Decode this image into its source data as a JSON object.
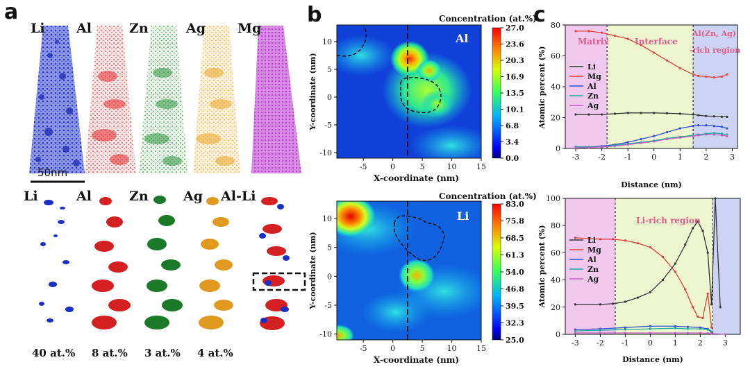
{
  "panel_a": {
    "letter": "a",
    "top_labels": [
      "Li",
      "Al",
      "Zn",
      "Ag",
      "Mg"
    ],
    "bottom_labels": [
      "Li",
      "Al",
      "Zn",
      "Ag",
      "Al-Li"
    ],
    "scale_bar": "50nm",
    "percentages": [
      "40 at.%",
      "8 at.%",
      "3 at.%",
      "4 at.%"
    ],
    "colors": {
      "li": "#2434c8",
      "al": "#e0282c",
      "zn": "#1f8a2e",
      "ag": "#e8a526",
      "mg": "#b43cc8"
    }
  },
  "panel_b": {
    "letter": "b",
    "top_map": {
      "element": "Al",
      "colorbar_title": "Concentration (at.%)",
      "colorbar_ticks": [
        "27.0",
        "23.6",
        "20.3",
        "16.9",
        "13.5",
        "10.1",
        "6.8",
        "3.4",
        "0.0"
      ],
      "xlabel": "X-coordinate (nm)",
      "ylabel": "Y-coordinate (nm)",
      "xticks": [
        "-5",
        "0",
        "5",
        "10",
        "15"
      ],
      "yticks": [
        "10",
        "5",
        "0",
        "-5",
        "-10"
      ]
    },
    "bottom_map": {
      "element": "Li",
      "colorbar_title": "Concentration (at.%)",
      "colorbar_ticks": [
        "83.0",
        "75.8",
        "68.5",
        "61.3",
        "54.0",
        "46.8",
        "39.5",
        "32.3",
        "25.0"
      ],
      "xlabel": "X-coordinate (nm)",
      "ylabel": "Y-coordinate (nm)",
      "xticks": [
        "-5",
        "0",
        "5",
        "10",
        "15"
      ],
      "yticks": [
        "10",
        "5",
        "0",
        "-5",
        "-10"
      ]
    }
  },
  "panel_c": {
    "letter": "c",
    "top_chart": {
      "type": "line",
      "xlabel": "Distance (nm)",
      "ylabel": "Atomic percent (%)",
      "xlim": [
        -3.4,
        3.2
      ],
      "ylim": [
        0,
        80
      ],
      "xticks": [
        "-3",
        "-2",
        "-1",
        "0",
        "1",
        "2",
        "3"
      ],
      "yticks": [
        "0",
        "20",
        "40",
        "60",
        "80"
      ],
      "region_labels": [
        "Matrix",
        "Interface",
        "Al(Zn, Ag)",
        "-rich region"
      ],
      "boundaries": [
        -1.8,
        1.5
      ],
      "legend": [
        "Li",
        "Mg",
        "Al",
        "Zn",
        "Ag"
      ],
      "series": [
        {
          "name": "Li",
          "x": [
            -3.0,
            -2.5,
            -2.0,
            -1.5,
            -1.0,
            -0.5,
            0.0,
            0.5,
            1.0,
            1.5,
            1.7,
            2.0,
            2.3,
            2.6,
            2.8
          ],
          "values": [
            22,
            22,
            22,
            22.5,
            23,
            23,
            23,
            22.8,
            22.5,
            22,
            21.5,
            21,
            20.8,
            20.5,
            20.5
          ]
        },
        {
          "name": "Mg",
          "x": [
            -3.0,
            -2.5,
            -2.0,
            -1.5,
            -1.0,
            -0.5,
            0.0,
            0.5,
            1.0,
            1.5,
            1.7,
            2.0,
            2.3,
            2.6,
            2.8
          ],
          "values": [
            76,
            76,
            75,
            73,
            71,
            67,
            62,
            57,
            52,
            48,
            47,
            46.5,
            46,
            46.5,
            48
          ]
        },
        {
          "name": "Al",
          "x": [
            -3.0,
            -2.5,
            -2.0,
            -1.5,
            -1.0,
            -0.5,
            0.0,
            0.5,
            1.0,
            1.5,
            1.7,
            2.0,
            2.3,
            2.6,
            2.8
          ],
          "values": [
            1,
            1,
            1.5,
            2.5,
            4,
            6,
            8,
            10.5,
            13,
            14.5,
            15,
            15,
            14.5,
            14,
            13
          ]
        },
        {
          "name": "Zn",
          "x": [
            -3.0,
            -2.5,
            -2.0,
            -1.5,
            -1.0,
            -0.5,
            0.0,
            0.5,
            1.0,
            1.5,
            1.7,
            2.0,
            2.3,
            2.6,
            2.8
          ],
          "values": [
            1,
            1,
            1,
            2,
            3,
            4,
            5,
            6.5,
            7.5,
            8.5,
            9,
            9.5,
            10,
            9.5,
            9
          ]
        },
        {
          "name": "Ag",
          "x": [
            -3.0,
            -2.5,
            -2.0,
            -1.5,
            -1.0,
            -0.5,
            0.0,
            0.5,
            1.0,
            1.5,
            1.7,
            2.0,
            2.3,
            2.6,
            2.8
          ],
          "values": [
            0.5,
            0.5,
            1,
            1.5,
            2.5,
            3.5,
            4.5,
            6,
            7,
            8,
            8.5,
            9,
            9,
            8.5,
            8
          ]
        }
      ]
    },
    "bottom_chart": {
      "type": "line",
      "xlabel": "Distance (nm)",
      "ylabel": "Atomic percent (%)",
      "xlim": [
        -3.4,
        3.6
      ],
      "ylim": [
        0,
        100
      ],
      "xticks": [
        "-3",
        "-2",
        "-1",
        "0",
        "1",
        "2",
        "3"
      ],
      "yticks": [
        "0",
        "20",
        "40",
        "60",
        "80",
        "100"
      ],
      "region_labels": [
        "Li-rich region"
      ],
      "boundaries": [
        -1.4,
        2.5
      ],
      "legend": [
        "Li",
        "Mg",
        "Al",
        "Zn",
        "Ag"
      ],
      "series": [
        {
          "name": "Li",
          "x": [
            -3.0,
            -2.0,
            -1.5,
            -1.0,
            -0.5,
            0.0,
            0.5,
            1.0,
            1.4,
            1.7,
            1.9,
            2.1,
            2.3,
            2.45,
            2.6,
            2.8
          ],
          "values": [
            22,
            22,
            22.5,
            24,
            27,
            31,
            40,
            52,
            66,
            78,
            83,
            76,
            60,
            22,
            100,
            20
          ]
        },
        {
          "name": "Mg",
          "x": [
            -3.0,
            -2.0,
            -1.5,
            -1.0,
            -0.5,
            0.0,
            0.5,
            1.0,
            1.4,
            1.7,
            1.9,
            2.1,
            2.3,
            2.45
          ],
          "values": [
            71,
            70,
            70,
            69,
            67,
            64,
            57,
            46,
            33,
            20,
            13,
            12,
            30,
            5
          ]
        },
        {
          "name": "Al",
          "x": [
            -3.0,
            -2.0,
            -1.0,
            0.0,
            1.0,
            1.5,
            2.0,
            2.3,
            2.45
          ],
          "values": [
            3.5,
            4,
            5,
            6,
            6,
            5.5,
            5,
            4,
            2
          ]
        },
        {
          "name": "Zn",
          "x": [
            -3.0,
            -2.0,
            -1.0,
            0.0,
            1.0,
            1.5,
            2.0,
            2.3,
            2.45
          ],
          "values": [
            2.5,
            3,
            3.5,
            4,
            4.5,
            4,
            4,
            3.5,
            1.5
          ]
        },
        {
          "name": "Ag",
          "x": [
            -3.0,
            -2.0,
            -1.0,
            0.0,
            1.0,
            1.5,
            2.0,
            2.3,
            2.45,
            3.0
          ],
          "values": [
            1,
            1,
            1,
            1,
            1,
            1,
            1,
            0.8,
            0.5,
            0
          ]
        }
      ]
    }
  }
}
